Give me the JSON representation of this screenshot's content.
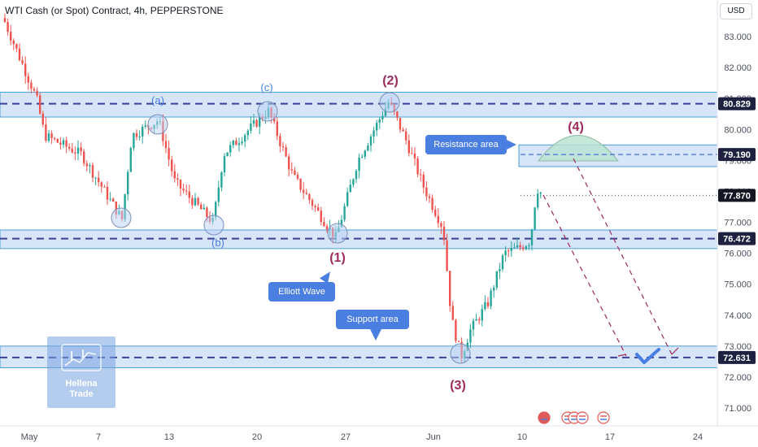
{
  "header": {
    "title": "WTI Cash (or Spot) Contract, 4h, PEPPERSTONE",
    "currency": "USD"
  },
  "chart_data": {
    "type": "candlestick",
    "x_ticks": [
      "May",
      "7",
      "13",
      "20",
      "27",
      "Jun",
      "10",
      "17",
      "24"
    ],
    "y_ticks": [
      "83.000",
      "82.000",
      "81.000",
      "80.000",
      "79.000",
      "78.000",
      "77.000",
      "76.000",
      "75.000",
      "74.000",
      "73.000",
      "72.000",
      "71.000"
    ],
    "ylim": [
      70.85,
      83.6
    ],
    "price_levels": [
      {
        "value": 80.829,
        "label": "80.829",
        "style": "dashed",
        "color": "#3d3f99"
      },
      {
        "value": 79.19,
        "label": "79.190",
        "style": "dashed",
        "color": "#4a6fd8"
      },
      {
        "value": 77.87,
        "label": "77.870",
        "style": "solid",
        "color": "#131722"
      },
      {
        "value": 76.472,
        "label": "76.472",
        "style": "dashed",
        "color": "#3d3f99"
      },
      {
        "value": 72.631,
        "label": "72.631",
        "style": "dashed",
        "color": "#3d3f99"
      }
    ],
    "zones": [
      {
        "name": "resistance-zone",
        "from": 80.4,
        "to": 81.2
      },
      {
        "name": "resistance-area-zone",
        "from": 78.8,
        "to": 79.5
      },
      {
        "name": "middle-support-zone",
        "from": 76.15,
        "to": 76.75
      },
      {
        "name": "support-zone",
        "from": 72.3,
        "to": 73.0
      }
    ],
    "wave_labels": [
      "(a)",
      "(b)",
      "(c)",
      "(1)",
      "(2)",
      "(3)",
      "(4)"
    ],
    "annotations": [
      "Resistance area",
      "Elliott Wave",
      "Support area"
    ],
    "colors": {
      "up": "#26a69a",
      "down": "#ef5350",
      "zone": "#bcd3f5",
      "wave_label": "#9c2a5a"
    }
  },
  "logo": {
    "line1": "Hellena",
    "line2": "Trade"
  }
}
